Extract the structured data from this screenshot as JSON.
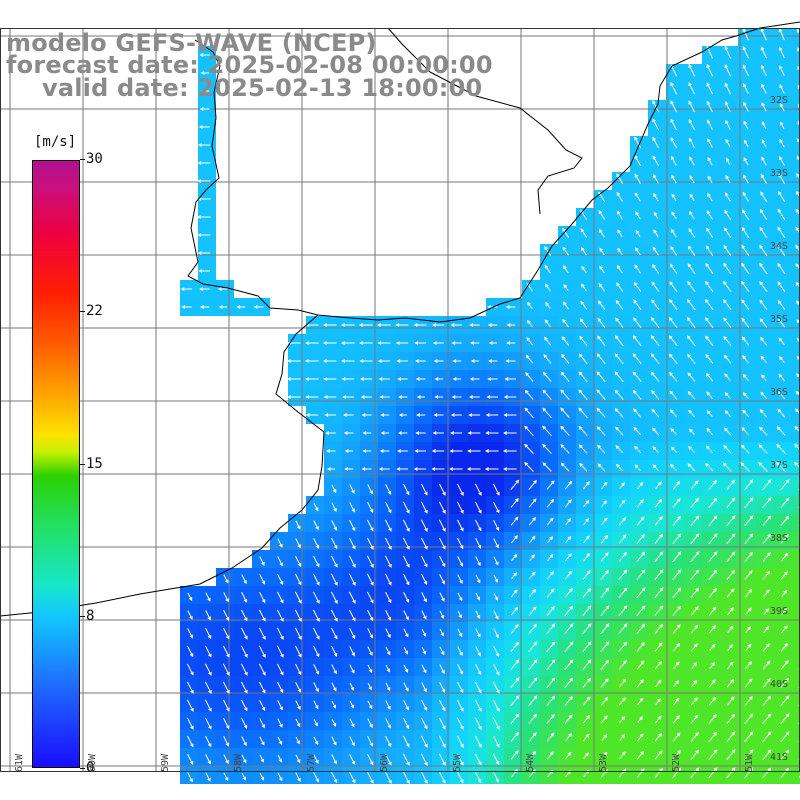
{
  "header": {
    "model": "modelo GEFS-WAVE (NCEP)",
    "forecast": "forecast date: 2025-02-08 00:00:00",
    "valid": "valid date: 2025-02-13 18:00:00"
  },
  "colorbar": {
    "unit": "[m/s]",
    "ticks": [
      {
        "label": "30",
        "value": 30
      },
      {
        "label": "22",
        "value": 22
      },
      {
        "label": "15",
        "value": 15
      },
      {
        "label": "8",
        "value": 8
      },
      {
        "label": "0",
        "value": 0
      }
    ],
    "colors": [
      "#1a0dff",
      "#12c8ff",
      "#2ad000",
      "#ffe000",
      "#ff2000",
      "#b01090"
    ]
  },
  "latitude_labels": [
    "32S",
    "33S",
    "34S",
    "35S",
    "36S",
    "37S",
    "38S",
    "39S",
    "40S",
    "41S"
  ],
  "longitude_labels": [
    "61W",
    "60W",
    "59W",
    "58W",
    "57W",
    "56W",
    "55W",
    "54W",
    "53W",
    "52W",
    "51W"
  ]
}
